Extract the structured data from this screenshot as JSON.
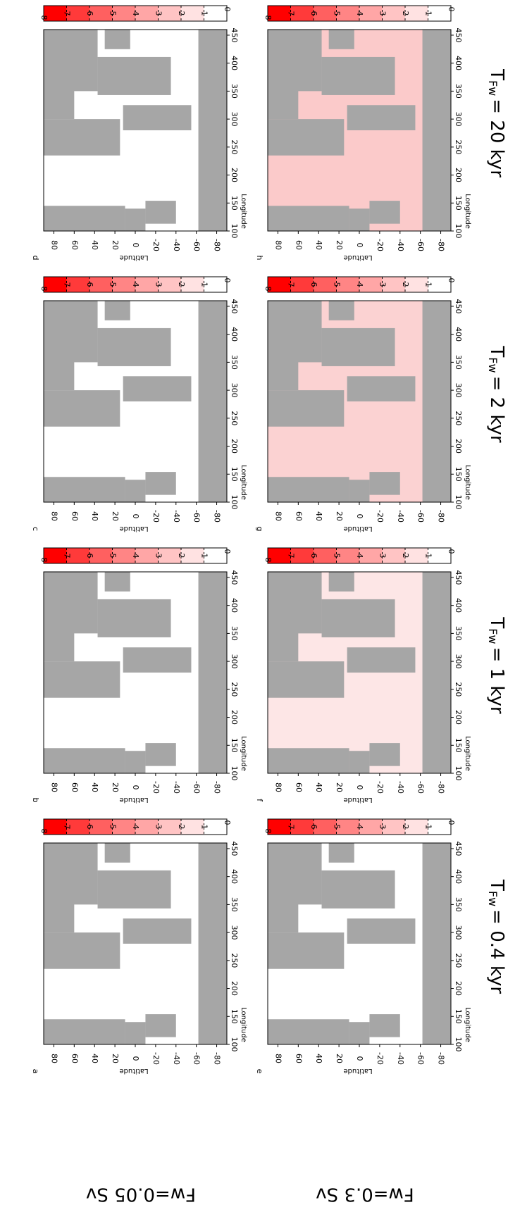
{
  "columns": [
    {
      "title_main": "T",
      "title_sub": "Fw",
      "title_rest": "= 0.4 kyr"
    },
    {
      "title_main": "T",
      "title_sub": "Fw",
      "title_rest": "= 1 kyr"
    },
    {
      "title_main": "T",
      "title_sub": "Fw",
      "title_rest": "= 2 kyr"
    },
    {
      "title_main": "T",
      "title_sub": "Fw",
      "title_rest": "= 20 kyr"
    }
  ],
  "rows": [
    {
      "label": "Fw=0.05 Sv"
    },
    {
      "label": "Fw=0.3 Sv"
    }
  ],
  "panels": [
    {
      "letter": "a",
      "ocean_color": "#ffffff"
    },
    {
      "letter": "b",
      "ocean_color": "#ffffff"
    },
    {
      "letter": "c",
      "ocean_color": "#ffffff"
    },
    {
      "letter": "d",
      "ocean_color": "#ffffff"
    },
    {
      "letter": "e",
      "ocean_color": "#ffffff"
    },
    {
      "letter": "f",
      "ocean_color": "#fde6e6"
    },
    {
      "letter": "g",
      "ocean_color": "#fbd2d2"
    },
    {
      "letter": "h",
      "ocean_color": "#fbcaca"
    }
  ],
  "axes": {
    "x_label": "Latitude",
    "y_label": "Longitude",
    "lat_lim": [
      90,
      -90
    ],
    "lat_ticks": [
      80,
      60,
      40,
      20,
      0,
      -20,
      -40,
      -60,
      -80
    ],
    "lon_lim": [
      100,
      460
    ],
    "lon_ticks": [
      100,
      150,
      200,
      250,
      300,
      350,
      400,
      450
    ],
    "land_color": "#a6a6a6"
  },
  "colorbar": {
    "lim": [
      8,
      0
    ],
    "ticks": [
      8,
      7,
      6,
      5,
      4,
      3,
      2,
      1,
      0
    ],
    "colors": [
      "#ff0000",
      "#ff3a3a",
      "#ff6060",
      "#ff8585",
      "#ffa6a6",
      "#ffc4c4",
      "#ffe2e2",
      "#ffffff"
    ]
  }
}
